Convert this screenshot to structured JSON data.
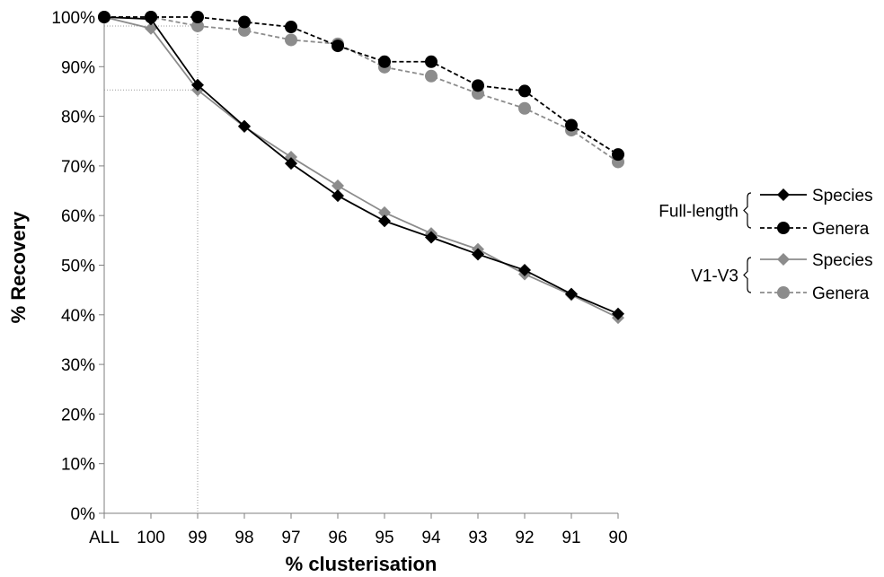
{
  "chart_data": {
    "type": "line",
    "title": "",
    "xlabel": "% clusterisation",
    "ylabel": "% Recovery",
    "categories": [
      "ALL",
      "100",
      "99",
      "98",
      "97",
      "96",
      "95",
      "94",
      "93",
      "92",
      "91",
      "90"
    ],
    "y_ticks": [
      "0%",
      "10%",
      "20%",
      "30%",
      "40%",
      "50%",
      "60%",
      "70%",
      "80%",
      "90%",
      "100%"
    ],
    "ylim": [
      0,
      100
    ],
    "grid": false,
    "legend_position": "right",
    "legend_groups": [
      {
        "name": "Full-length",
        "series_indices": [
          0,
          1
        ]
      },
      {
        "name": "V1-V3",
        "series_indices": [
          2,
          3
        ]
      }
    ],
    "reference_lines": [
      {
        "category": "99",
        "y_values": [
          98.2,
          85.3
        ]
      }
    ],
    "series": [
      {
        "name": "Species",
        "group": "Full-length",
        "color": "#000000",
        "marker": "diamond",
        "dash": "solid",
        "values": [
          100,
          99.6,
          86.3,
          78.0,
          70.5,
          64.0,
          58.9,
          55.6,
          52.2,
          49.0,
          44.2,
          40.2
        ]
      },
      {
        "name": "Genera",
        "group": "Full-length",
        "color": "#000000",
        "marker": "circle",
        "dash": "dashed",
        "values": [
          100,
          100,
          100,
          99.0,
          98.0,
          94.2,
          91.0,
          91.0,
          86.2,
          85.1,
          78.2,
          72.3
        ]
      },
      {
        "name": "Species",
        "group": "V1-V3",
        "color": "#8c8c8c",
        "marker": "diamond",
        "dash": "solid",
        "values": [
          100,
          97.7,
          85.3,
          77.9,
          71.8,
          66.0,
          60.6,
          56.4,
          53.2,
          48.2,
          44.0,
          39.4
        ]
      },
      {
        "name": "Genera",
        "group": "V1-V3",
        "color": "#8c8c8c",
        "marker": "circle",
        "dash": "dashed",
        "values": [
          100,
          100,
          98.2,
          97.3,
          95.4,
          94.6,
          89.9,
          88.1,
          84.6,
          81.6,
          77.2,
          70.8
        ]
      }
    ]
  }
}
